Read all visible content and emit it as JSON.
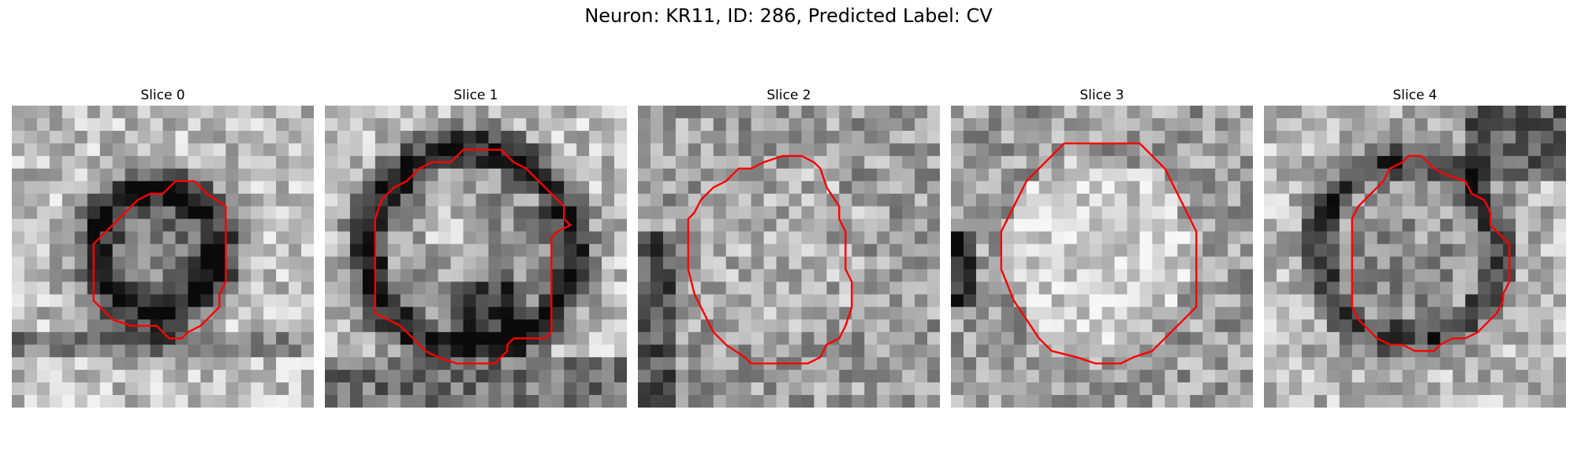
{
  "figure": {
    "title": "Neuron: KR11, ID: 286, Predicted Label: CV",
    "contour_color": "#ff0000"
  },
  "panels": [
    {
      "title": "Slice 0",
      "kind": "ring-dark",
      "seed": 11
    },
    {
      "title": "Slice 1",
      "kind": "ring-thick",
      "seed": 23
    },
    {
      "title": "Slice 2",
      "kind": "textured",
      "seed": 37
    },
    {
      "title": "Slice 3",
      "kind": "bright",
      "seed": 41
    },
    {
      "title": "Slice 4",
      "kind": "ring-medium",
      "seed": 53
    }
  ]
}
